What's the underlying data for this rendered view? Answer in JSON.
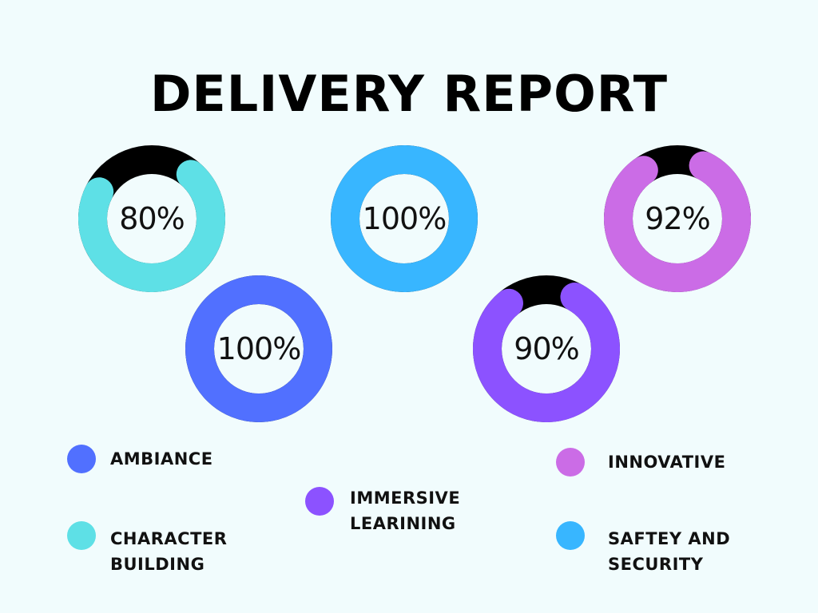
{
  "title": "DELIVERY REPORT",
  "chart_data": {
    "type": "donut",
    "title": "DELIVERY REPORT",
    "series": [
      {
        "name": "CHARACTER BUILDING",
        "value": 80,
        "label": "80%",
        "color": "#5ee0e6"
      },
      {
        "name": "SAFTEY AND SECURITY",
        "value": 100,
        "label": "100%",
        "color": "#38b6ff"
      },
      {
        "name": "INNOVATIVE",
        "value": 92,
        "label": "92%",
        "color": "#cb6ce6"
      },
      {
        "name": "AMBIANCE",
        "value": 100,
        "label": "100%",
        "color": "#5170ff"
      },
      {
        "name": "IMMERSIVE LEARINING",
        "value": 90,
        "label": "90%",
        "color": "#8c52ff"
      }
    ],
    "remainder_color": "#000000",
    "legend": [
      {
        "name": "AMBIANCE",
        "line1": "AMBIANCE",
        "line2": "",
        "color": "#5170ff"
      },
      {
        "name": "CHARACTER BUILDING",
        "line1": "CHARACTER",
        "line2": "BUILDING",
        "color": "#5ee0e6"
      },
      {
        "name": "IMMERSIVE LEARINING",
        "line1": "IMMERSIVE",
        "line2": "LEARINING",
        "color": "#8c52ff"
      },
      {
        "name": "INNOVATIVE",
        "line1": "INNOVATIVE",
        "line2": "",
        "color": "#cb6ce6"
      },
      {
        "name": "SAFTEY AND SECURITY",
        "line1": "SAFTEY AND",
        "line2": "SECURITY",
        "color": "#38b6ff"
      }
    ]
  }
}
